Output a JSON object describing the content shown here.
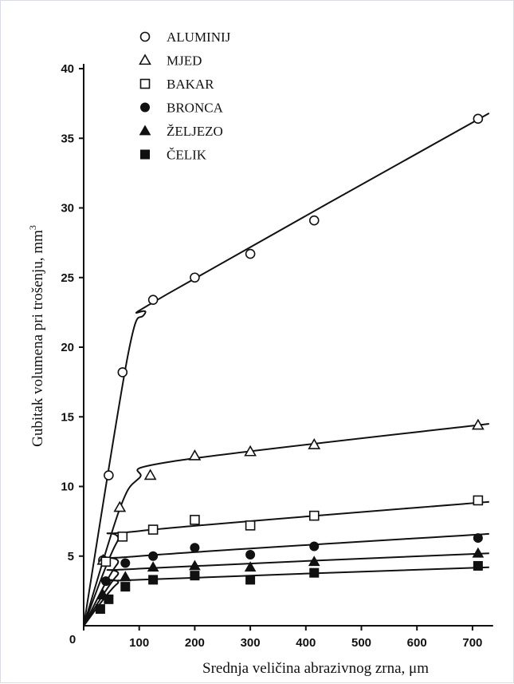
{
  "chart_data": {
    "type": "scatter",
    "xlabel": "Srednja veličina abrazivnog zrna, μm",
    "ylabel": "Gubitak volumena pri trošenju, mm",
    "ylabel_sup": "3",
    "xlim": [
      0,
      730
    ],
    "ylim": [
      0,
      40
    ],
    "x_ticks": [
      0,
      100,
      200,
      300,
      400,
      500,
      600,
      700
    ],
    "y_ticks": [
      0,
      5,
      10,
      15,
      20,
      25,
      30,
      35,
      40
    ],
    "grid": false,
    "legend_position": "top-left",
    "series": [
      {
        "name": "ALUMINIJ",
        "marker": "open-circle",
        "points": [
          [
            35,
            4.7
          ],
          [
            45,
            10.8
          ],
          [
            70,
            18.2
          ],
          [
            125,
            23.4
          ],
          [
            200,
            25.0
          ],
          [
            300,
            26.7
          ],
          [
            415,
            29.1
          ],
          [
            710,
            36.4
          ]
        ],
        "curve": [
          [
            0,
            0
          ],
          [
            80,
            19.5
          ],
          [
            110,
            22.4
          ],
          [
            150,
            23.8
          ],
          [
            730,
            36.8
          ]
        ]
      },
      {
        "name": "MJED",
        "marker": "open-triangle",
        "points": [
          [
            35,
            4.7
          ],
          [
            65,
            8.5
          ],
          [
            120,
            10.8
          ],
          [
            200,
            12.2
          ],
          [
            300,
            12.5
          ],
          [
            415,
            13.0
          ],
          [
            710,
            14.4
          ]
        ],
        "curve": [
          [
            0,
            0
          ],
          [
            65,
            8.4
          ],
          [
            100,
            10.6
          ],
          [
            160,
            11.8
          ],
          [
            730,
            14.5
          ]
        ]
      },
      {
        "name": "BAKAR",
        "marker": "open-square",
        "points": [
          [
            40,
            4.6
          ],
          [
            70,
            6.4
          ],
          [
            125,
            6.9
          ],
          [
            200,
            7.6
          ],
          [
            300,
            7.2
          ],
          [
            415,
            7.9
          ],
          [
            710,
            9.0
          ]
        ],
        "curve": [
          [
            0,
            0
          ],
          [
            60,
            6.0
          ],
          [
            100,
            6.8
          ],
          [
            730,
            8.9
          ]
        ]
      },
      {
        "name": "BRONCA",
        "marker": "filled-circle",
        "points": [
          [
            40,
            3.2
          ],
          [
            75,
            4.5
          ],
          [
            125,
            5.0
          ],
          [
            200,
            5.6
          ],
          [
            300,
            5.1
          ],
          [
            415,
            5.7
          ],
          [
            710,
            6.3
          ]
        ],
        "curve": [
          [
            0,
            0
          ],
          [
            60,
            4.4
          ],
          [
            100,
            5.0
          ],
          [
            730,
            6.6
          ]
        ]
      },
      {
        "name": "ŽELJEZO",
        "marker": "filled-triangle",
        "points": [
          [
            35,
            2.2
          ],
          [
            75,
            3.5
          ],
          [
            125,
            4.2
          ],
          [
            200,
            4.3
          ],
          [
            300,
            4.2
          ],
          [
            415,
            4.6
          ],
          [
            710,
            5.2
          ]
        ],
        "curve": [
          [
            0,
            0
          ],
          [
            60,
            3.6
          ],
          [
            100,
            4.1
          ],
          [
            730,
            5.2
          ]
        ]
      },
      {
        "name": "ČELIK",
        "marker": "filled-square",
        "points": [
          [
            30,
            1.2
          ],
          [
            45,
            1.9
          ],
          [
            75,
            2.8
          ],
          [
            125,
            3.3
          ],
          [
            200,
            3.6
          ],
          [
            300,
            3.3
          ],
          [
            415,
            3.8
          ],
          [
            710,
            4.3
          ]
        ],
        "curve": [
          [
            0,
            0
          ],
          [
            60,
            3.0
          ],
          [
            100,
            3.3
          ],
          [
            730,
            4.2
          ]
        ]
      }
    ]
  }
}
